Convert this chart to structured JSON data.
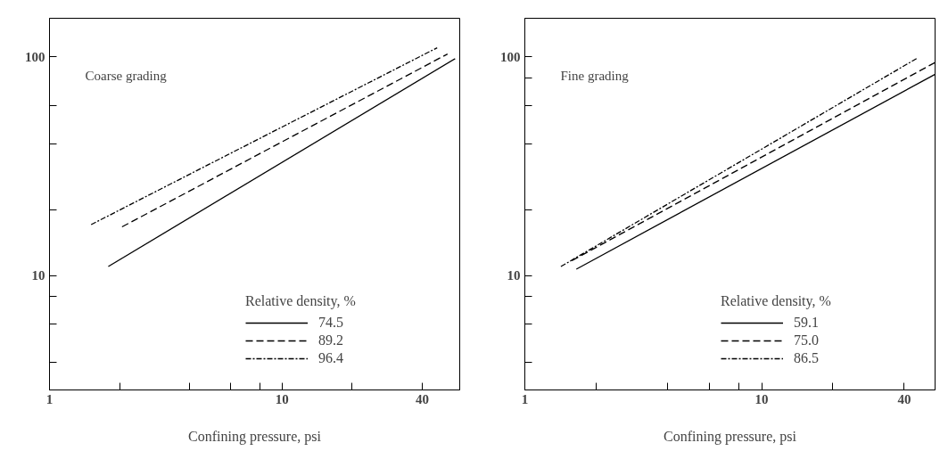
{
  "chart_data": [
    {
      "type": "line",
      "log": "xy",
      "grid": false,
      "legend": "bottom right",
      "legend_title": "Relative density, %",
      "xlabel": "Confining pressure, psi",
      "annotations": [
        "Coarse grading"
      ],
      "xlim": [
        1,
        58
      ],
      "ylim": [
        3,
        150
      ],
      "xticks": [
        1,
        {
          "value": 2,
          "label": null
        },
        {
          "value": 4,
          "label": null
        },
        {
          "value": 6,
          "label": null
        },
        {
          "value": 8,
          "label": null
        },
        10,
        {
          "value": 20,
          "label": null
        },
        40
      ],
      "yticks": [
        {
          "value": 4,
          "label": null
        },
        {
          "value": 6,
          "label": null
        },
        {
          "value": 8,
          "label": null
        },
        10,
        {
          "value": 20,
          "label": null
        },
        {
          "value": 40,
          "label": null
        },
        {
          "value": 60,
          "label": null
        },
        100
      ],
      "series": [
        {
          "name": "74.5",
          "color": "#000000",
          "line_style": "solid",
          "x": [
            1.79,
            55.4
          ],
          "values": [
            11.0,
            98
          ]
        },
        {
          "name": "89.2",
          "color": "#000000",
          "line_style": "dashed",
          "x": [
            2.05,
            51.4
          ],
          "values": [
            16.7,
            103
          ]
        },
        {
          "name": "96.4",
          "color": "#000000",
          "line_style": "dashdot",
          "x": [
            1.51,
            46.4
          ],
          "values": [
            17.1,
            110
          ]
        }
      ]
    },
    {
      "type": "line",
      "log": "xy",
      "grid": false,
      "legend": "bottom right",
      "legend_title": "Relative density, %",
      "xlabel": "Confining pressure, psi",
      "annotations": [
        "Fine grading"
      ],
      "xlim": [
        1,
        54
      ],
      "ylim": [
        3,
        150
      ],
      "xticks": [
        1,
        {
          "value": 2,
          "label": null
        },
        {
          "value": 4,
          "label": null
        },
        {
          "value": 6,
          "label": null
        },
        {
          "value": 8,
          "label": null
        },
        10,
        {
          "value": 20,
          "label": null
        },
        40
      ],
      "yticks": [
        {
          "value": 4,
          "label": null
        },
        {
          "value": 6,
          "label": null
        },
        {
          "value": 8,
          "label": null
        },
        10,
        {
          "value": 20,
          "label": null
        },
        {
          "value": 40,
          "label": null
        },
        {
          "value": 60,
          "label": null
        },
        {
          "value": 80,
          "label": null
        },
        100
      ],
      "series": [
        {
          "name": "59.1",
          "color": "#000000",
          "line_style": "solid",
          "x": [
            1.65,
            53.8
          ],
          "values": [
            10.7,
            83
          ]
        },
        {
          "name": "75.0",
          "color": "#000000",
          "line_style": "dashed",
          "x": [
            1.58,
            53.8
          ],
          "values": [
            11.7,
            94
          ]
        },
        {
          "name": "86.5",
          "color": "#000000",
          "line_style": "dashdot",
          "x": [
            1.42,
            45.7
          ],
          "values": [
            11.0,
            99
          ]
        }
      ]
    }
  ]
}
